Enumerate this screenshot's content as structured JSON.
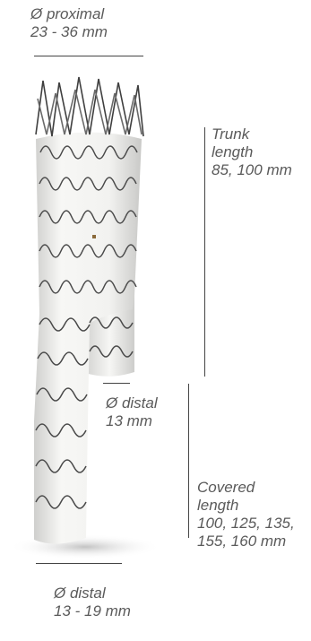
{
  "labels": {
    "proximal": {
      "title": "Ø proximal",
      "value": "23 - 36 mm"
    },
    "trunk": {
      "line1": "Trunk",
      "line2": "length",
      "value": "85, 100 mm"
    },
    "distal_short": {
      "title": "Ø distal",
      "value": "13 mm"
    },
    "covered": {
      "line1": "Covered",
      "line2": "length",
      "value1": "100, 125, 135,",
      "value2": "155, 160 mm"
    },
    "distal_long": {
      "title": "Ø distal",
      "value": "13 - 19 mm"
    }
  },
  "colors": {
    "fabric": "#f2f2f0",
    "fabric_shade": "#d8d8d6",
    "stent_wire": "#4a4a4a",
    "text": "#5a5a5a"
  }
}
